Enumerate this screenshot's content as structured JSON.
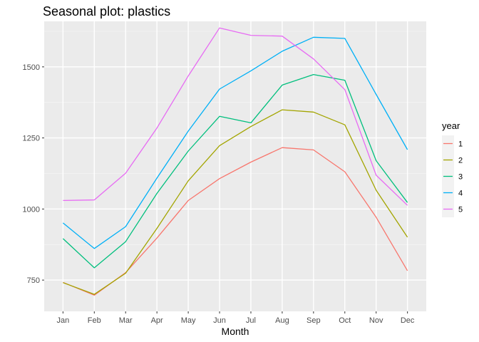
{
  "chart_data": {
    "type": "line",
    "title": "Seasonal plot: plastics",
    "xlabel": "Month",
    "ylabel": "",
    "categories": [
      "Jan",
      "Feb",
      "Mar",
      "Apr",
      "May",
      "Jun",
      "Jul",
      "Aug",
      "Sep",
      "Oct",
      "Nov",
      "Dec"
    ],
    "ylim": [
      640,
      1660
    ],
    "yticks": [
      750,
      1000,
      1250,
      1500
    ],
    "ytick_labels": [
      "750",
      "1000",
      "1250",
      "1500"
    ],
    "grid": true,
    "legend": {
      "title": "year",
      "placement": "right"
    },
    "series": [
      {
        "name": "1",
        "color": "#F8766D",
        "values": [
          742,
          697,
          776,
          898,
          1030,
          1107,
          1165,
          1216,
          1208,
          1131,
          971,
          783
        ]
      },
      {
        "name": "2",
        "color": "#A3A500",
        "values": [
          741,
          700,
          774,
          932,
          1099,
          1223,
          1290,
          1349,
          1341,
          1296,
          1066,
          901
        ]
      },
      {
        "name": "3",
        "color": "#00BF7D",
        "values": [
          896,
          793,
          885,
          1055,
          1204,
          1326,
          1303,
          1436,
          1473,
          1453,
          1170,
          1023
        ]
      },
      {
        "name": "4",
        "color": "#00B0F6",
        "values": [
          951,
          861,
          938,
          1109,
          1274,
          1422,
          1486,
          1555,
          1604,
          1600,
          1403,
          1209
        ]
      },
      {
        "name": "5",
        "color": "#E76BF3",
        "values": [
          1030,
          1032,
          1126,
          1285,
          1468,
          1637,
          1611,
          1608,
          1528,
          1420,
          1119,
          1013
        ]
      }
    ]
  }
}
